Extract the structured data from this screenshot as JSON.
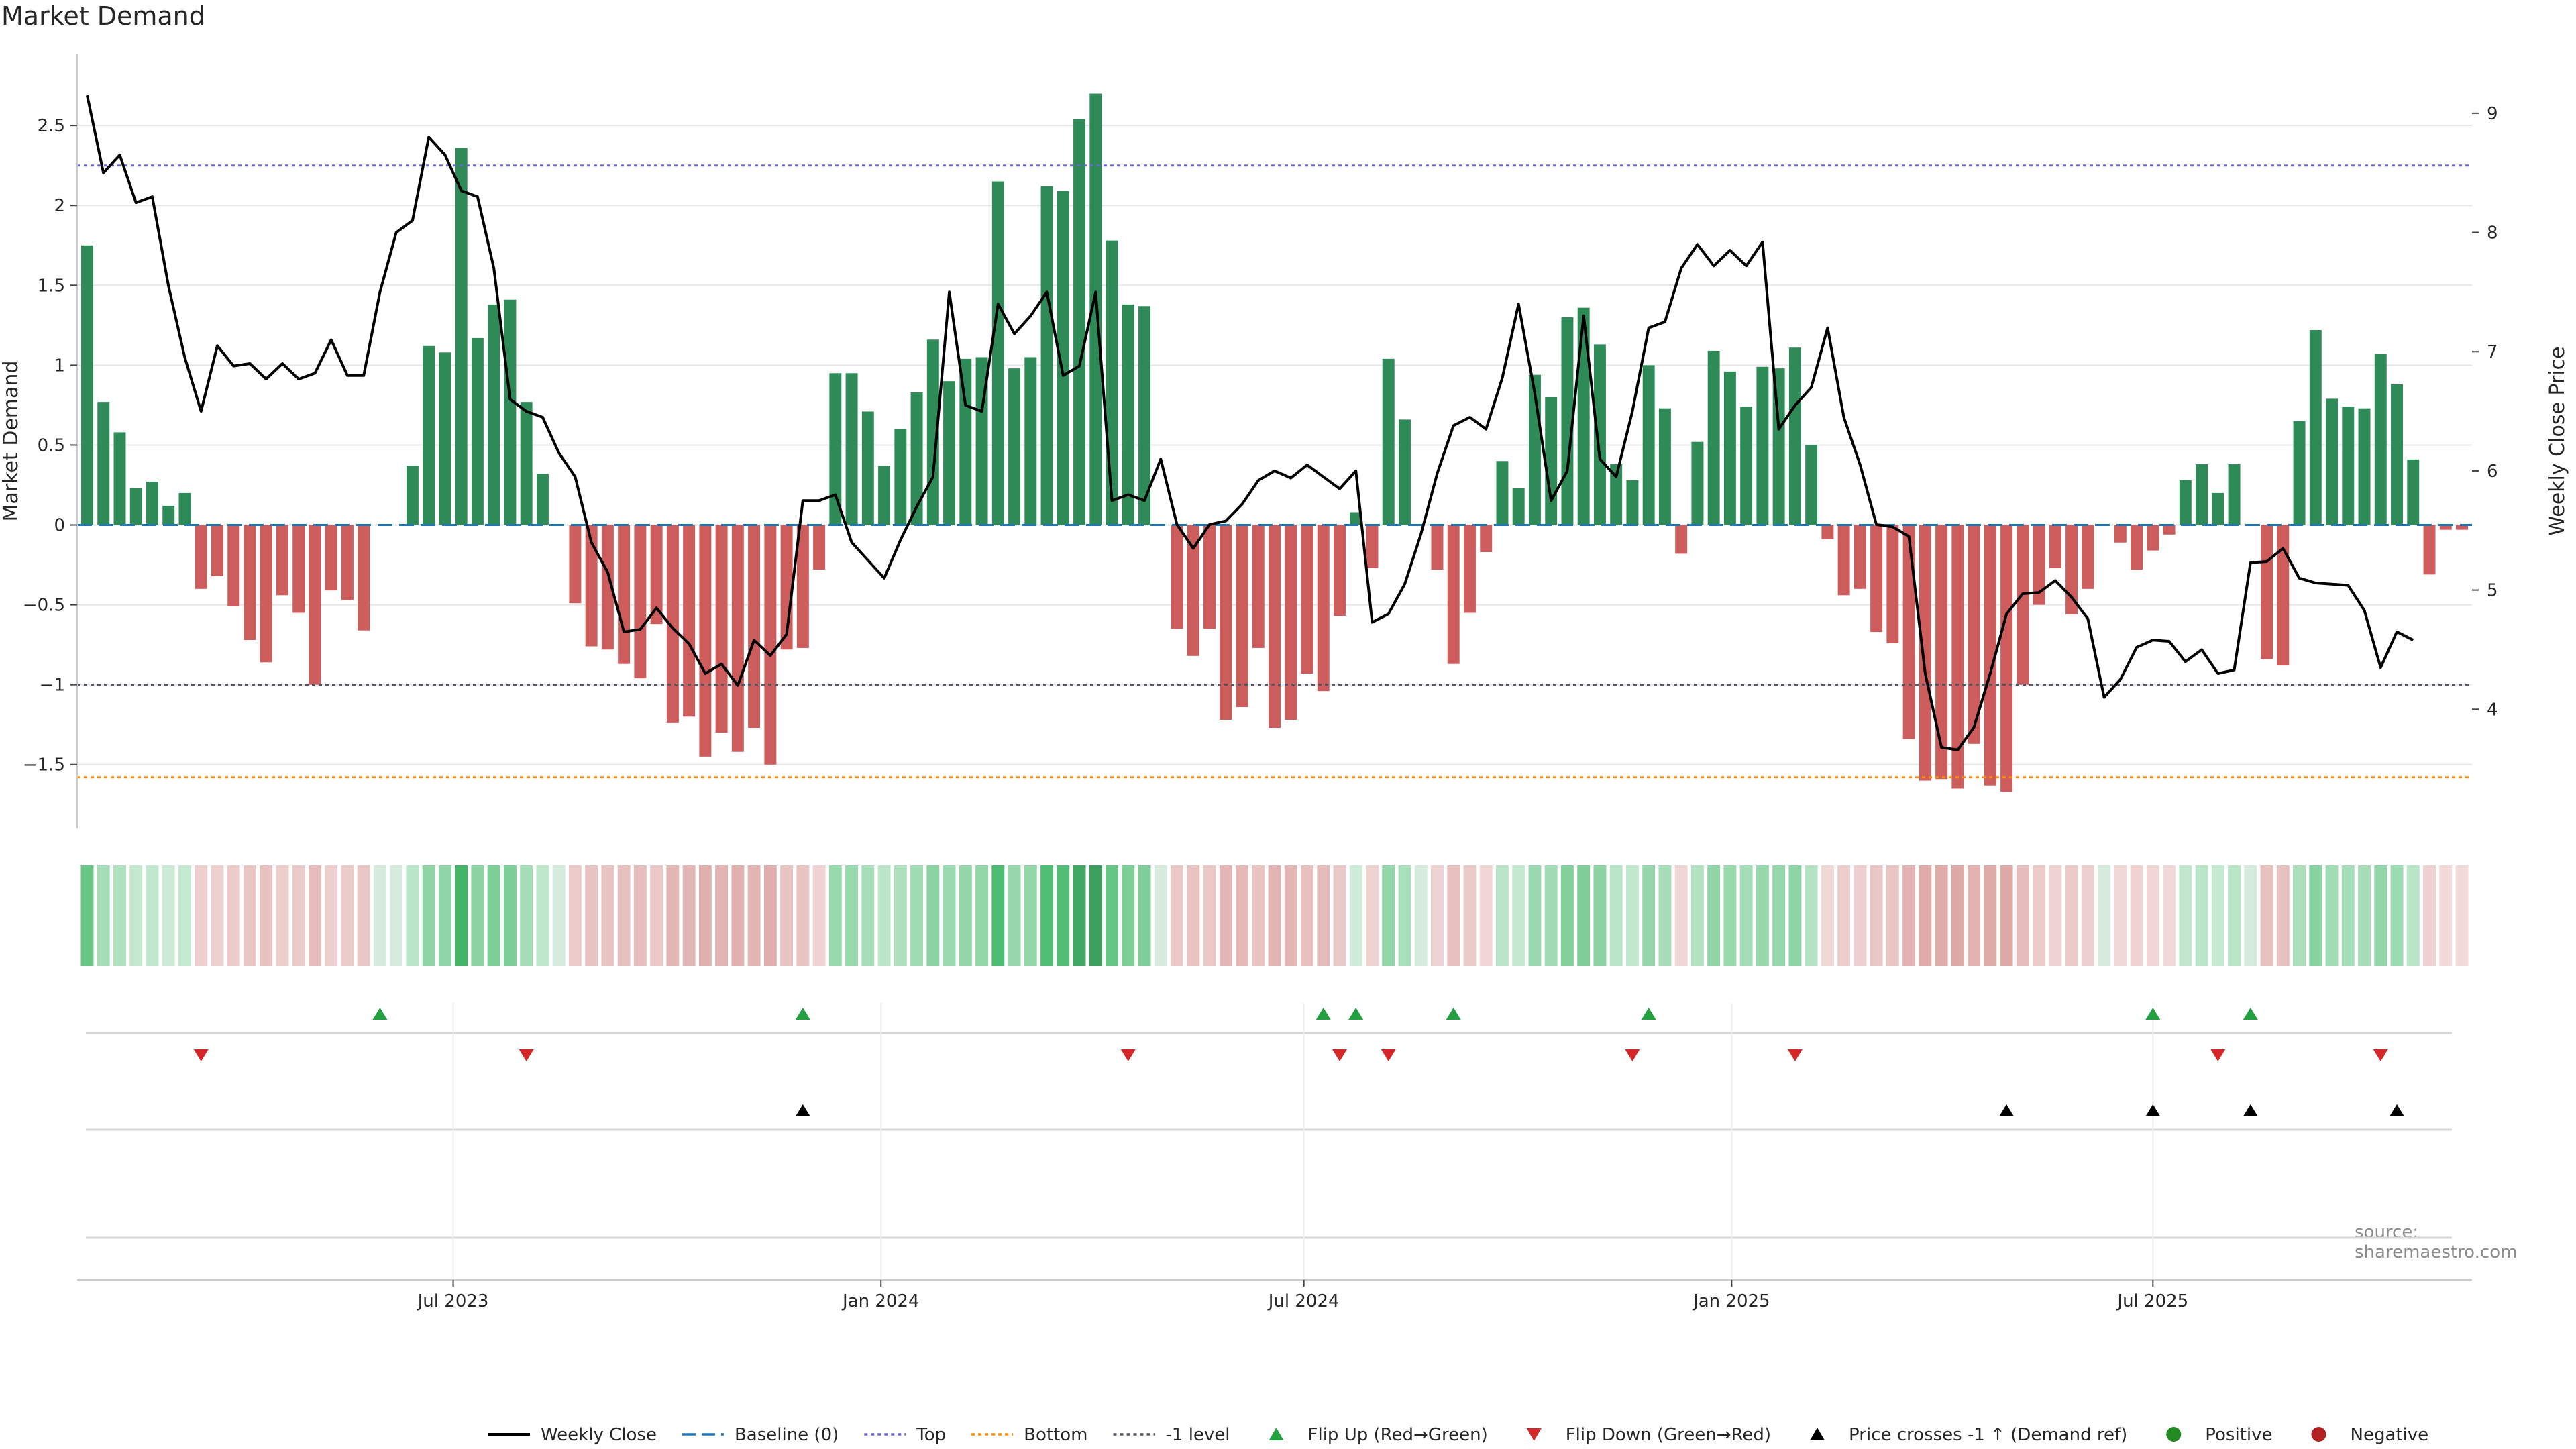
{
  "title": "Market Demand",
  "source": "source: sharemaestro.com",
  "colors": {
    "positive": "#2e8b57",
    "negative": "#cd5c5c",
    "price": "#000000",
    "baseline": "#1f77b4",
    "top": "#6a6acd",
    "bottom": "#ff8c00",
    "minus1": "#555566",
    "flip_up": "#22a040",
    "flip_down": "#d62728",
    "cross": "#000000",
    "grid": "#e6e6e6"
  },
  "chart_data": {
    "type": "bar",
    "title": "Market Demand",
    "ylabel": "Market Demand",
    "y2label": "Weekly Close Price",
    "ylim": [
      -1.9,
      2.95
    ],
    "y2lim": [
      3.0,
      9.5
    ],
    "y_ticks": [
      2.5,
      2,
      1.5,
      1,
      0.5,
      0,
      -0.5,
      -1,
      -1.5
    ],
    "y_tick_labels": [
      "2.5",
      "2",
      "1.5",
      "1",
      "0.5",
      "0",
      "−0.5",
      "−1",
      "−1.5"
    ],
    "y2_ticks": [
      9,
      8,
      7,
      6,
      5,
      4
    ],
    "y2_tick_labels": [
      "9",
      "8",
      "7",
      "6",
      "5",
      "4"
    ],
    "x_ticks": [
      {
        "label": "Jul 2023",
        "index": 22.5
      },
      {
        "label": "Jan 2024",
        "index": 48.8
      },
      {
        "label": "Jul 2024",
        "index": 74.8
      },
      {
        "label": "Jan 2025",
        "index": 101.1
      },
      {
        "label": "Jul 2025",
        "index": 127.0
      }
    ],
    "reference_lines": {
      "baseline": 0,
      "top": 2.25,
      "bottom": -1.58,
      "minus1": -1.0
    },
    "demand": [
      1.75,
      0.77,
      0.58,
      0.23,
      0.27,
      0.12,
      0.2,
      -0.4,
      -0.32,
      -0.51,
      -0.72,
      -0.86,
      -0.44,
      -0.55,
      -1.0,
      -0.41,
      -0.47,
      -0.66,
      0,
      0,
      0.37,
      1.12,
      1.08,
      2.36,
      1.17,
      1.38,
      1.41,
      0.77,
      0.32,
      0,
      -0.49,
      -0.76,
      -0.78,
      -0.87,
      -0.96,
      -0.62,
      -1.24,
      -1.2,
      -1.45,
      -1.3,
      -1.42,
      -1.27,
      -1.5,
      -0.78,
      -0.77,
      -0.28,
      0.95,
      0.95,
      0.71,
      0.37,
      0.6,
      0.83,
      1.16,
      0.9,
      1.04,
      1.05,
      2.15,
      0.98,
      1.05,
      2.12,
      2.09,
      2.54,
      2.7,
      1.78,
      1.38,
      1.37,
      0,
      -0.65,
      -0.82,
      -0.65,
      -1.22,
      -1.14,
      -0.77,
      -1.27,
      -1.22,
      -0.93,
      -1.04,
      -0.57,
      0.08,
      -0.27,
      1.04,
      0.66,
      0,
      -0.28,
      -0.87,
      -0.55,
      -0.17,
      0.4,
      0.23,
      0.94,
      0.8,
      1.3,
      1.36,
      1.13,
      0.38,
      0.28,
      1.0,
      0.73,
      -0.18,
      0.52,
      1.09,
      0.96,
      0.74,
      0.99,
      0.98,
      1.11,
      0.5,
      -0.09,
      -0.44,
      -0.4,
      -0.67,
      -0.74,
      -1.34,
      -1.6,
      -1.59,
      -1.65,
      -1.37,
      -1.63,
      -1.67,
      -1.0,
      -0.5,
      -0.27,
      -0.56,
      -0.4,
      0,
      -0.11,
      -0.28,
      -0.16,
      -0.06,
      0.28,
      0.38,
      0.2,
      0.38,
      0,
      -0.84,
      -0.88,
      0.65,
      1.22,
      0.79,
      0.74,
      0.73,
      1.07,
      0.88,
      0.41,
      -0.31,
      -0.03,
      -0.03
    ],
    "price": [
      9.15,
      8.5,
      8.65,
      8.25,
      8.3,
      7.55,
      6.95,
      6.5,
      7.05,
      6.88,
      6.9,
      6.77,
      6.9,
      6.77,
      6.82,
      7.1,
      6.8,
      6.8,
      7.5,
      8.0,
      8.1,
      8.8,
      8.65,
      8.35,
      8.3,
      7.7,
      6.6,
      6.5,
      6.45,
      6.15,
      5.95,
      5.4,
      5.15,
      4.65,
      4.67,
      4.85,
      4.68,
      4.55,
      4.3,
      4.38,
      4.2,
      4.58,
      4.45,
      4.63,
      5.75,
      5.75,
      5.8,
      5.4,
      5.25,
      5.1,
      5.42,
      5.7,
      5.95,
      7.5,
      6.55,
      6.5,
      7.4,
      7.15,
      7.3,
      7.5,
      6.8,
      6.88,
      7.5,
      5.75,
      5.8,
      5.75,
      6.1,
      5.55,
      5.35,
      5.55,
      5.58,
      5.72,
      5.92,
      6.0,
      5.94,
      6.05,
      5.95,
      5.85,
      6.0,
      4.73,
      4.8,
      5.05,
      5.47,
      5.98,
      6.38,
      6.45,
      6.35,
      6.78,
      7.4,
      6.65,
      5.75,
      6.0,
      7.3,
      6.1,
      5.95,
      6.5,
      7.2,
      7.25,
      7.7,
      7.9,
      7.72,
      7.85,
      7.72,
      7.92,
      6.35,
      6.55,
      6.7,
      7.2,
      6.45,
      6.05,
      5.55,
      5.53,
      5.45,
      4.3,
      3.68,
      3.66,
      3.85,
      4.3,
      4.8,
      4.97,
      4.98,
      5.08,
      4.94,
      4.76,
      4.1,
      4.25,
      4.52,
      4.58,
      4.57,
      4.4,
      4.5,
      4.3,
      4.33,
      5.23,
      5.24,
      5.35,
      5.1,
      5.06,
      5.05,
      5.04,
      4.83,
      4.35,
      4.65,
      4.58
    ],
    "flip_up_indices": [
      18,
      44,
      76,
      78,
      84,
      96,
      127,
      133
    ],
    "flip_down_indices": [
      7,
      27,
      64,
      77,
      80,
      95,
      105,
      131,
      141
    ],
    "price_cross_up_indices": [
      44,
      118,
      127,
      133,
      142
    ],
    "legend_placement": "bottom-center",
    "legend": [
      {
        "label": "Weekly Close",
        "kind": "line",
        "color": "#000000"
      },
      {
        "label": "Baseline (0)",
        "kind": "dash",
        "color": "#1f77b4"
      },
      {
        "label": "Top",
        "kind": "dot",
        "color": "#6a6acd"
      },
      {
        "label": "Bottom",
        "kind": "dot",
        "color": "#ff8c00"
      },
      {
        "label": "-1 level",
        "kind": "dot",
        "color": "#555566"
      },
      {
        "label": "Flip Up (Red→Green)",
        "kind": "tri-up",
        "color": "#22a040"
      },
      {
        "label": "Flip Down (Green→Red)",
        "kind": "tri-down",
        "color": "#d62728"
      },
      {
        "label": "Price crosses -1 ↑ (Demand ref)",
        "kind": "tri-up",
        "color": "#000000"
      },
      {
        "label": "Positive",
        "kind": "circle",
        "color": "#228b22"
      },
      {
        "label": "Negative",
        "kind": "circle",
        "color": "#b22222"
      }
    ]
  }
}
